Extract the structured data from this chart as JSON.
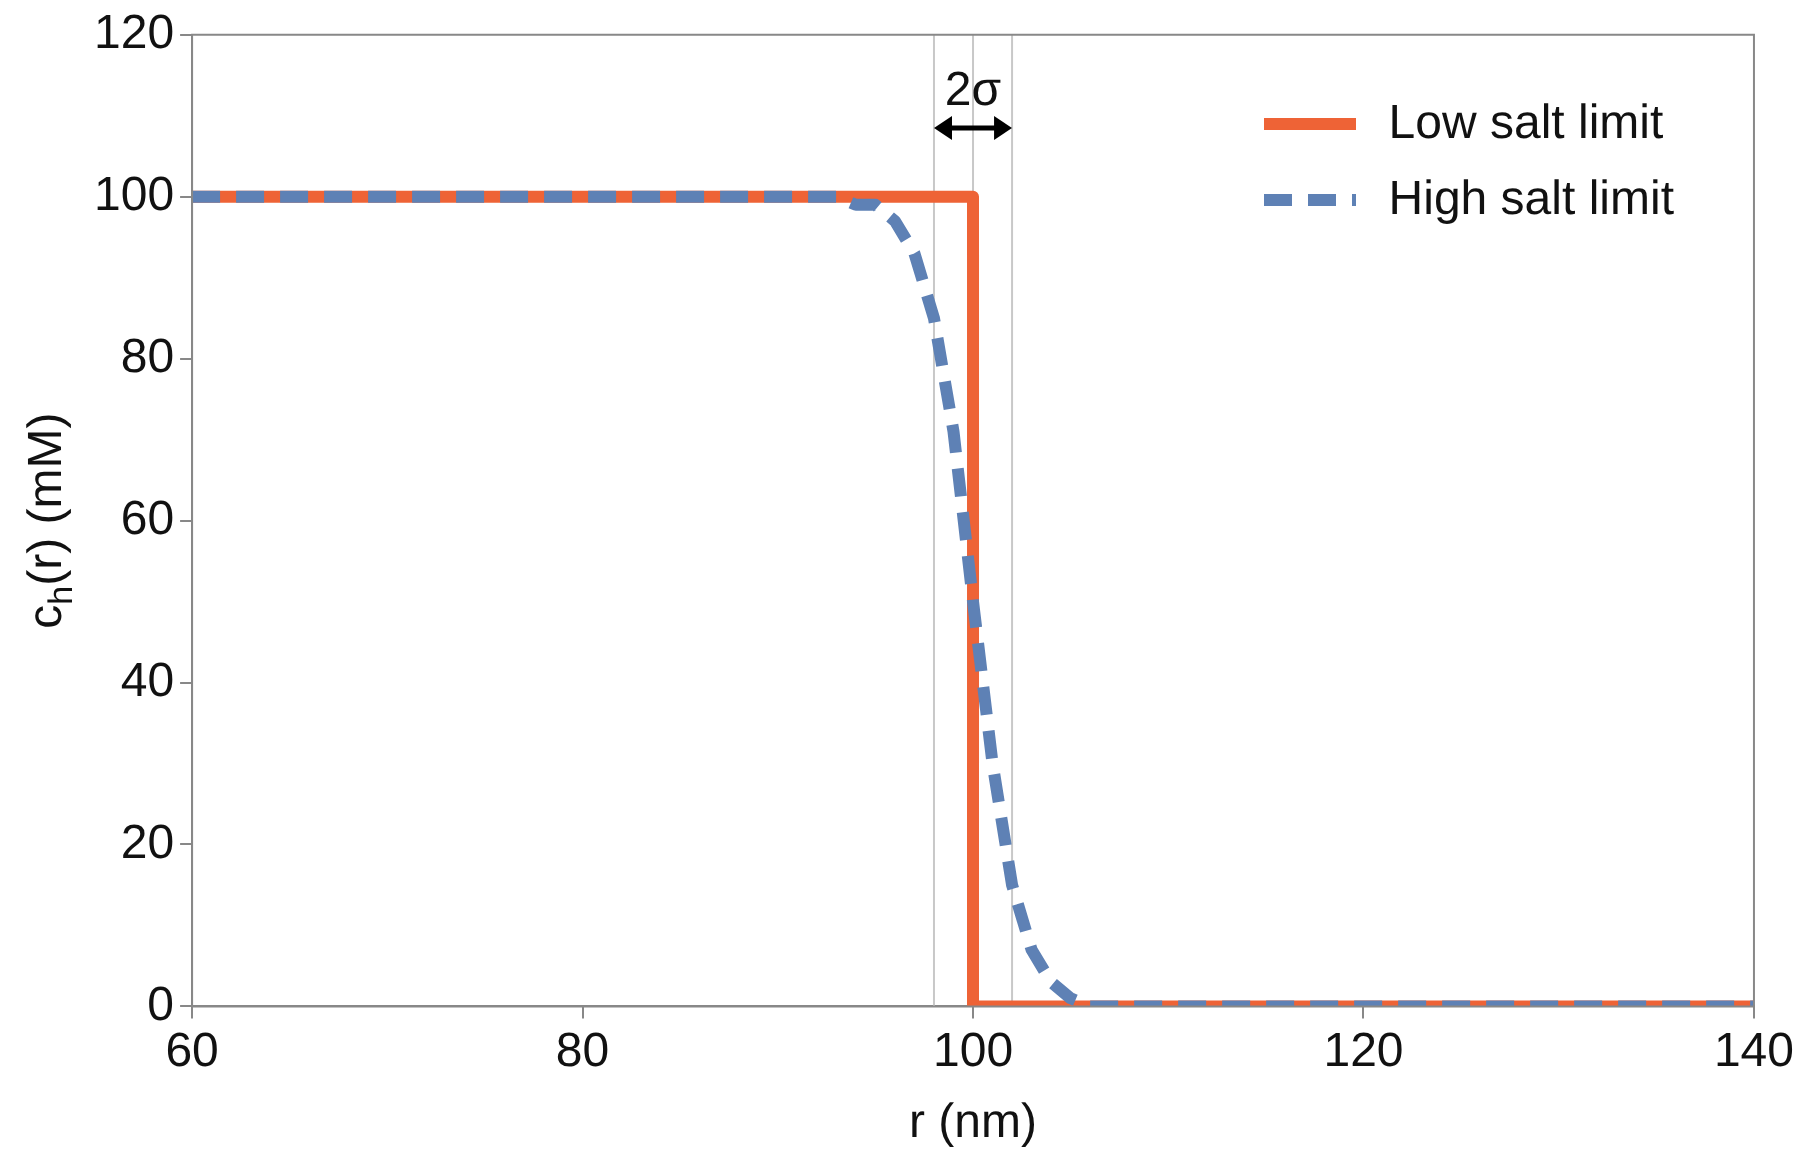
{
  "chart_data": {
    "type": "line",
    "xlabel": "r (nm)",
    "ylabel": "c$_{h}$(r) (mM)",
    "xlim": [
      60,
      140
    ],
    "xticks": [
      60,
      80,
      100,
      120,
      140
    ],
    "ylim": [
      0,
      120
    ],
    "yticks": [
      0,
      20,
      40,
      60,
      80,
      100,
      120
    ],
    "grid": false,
    "legend": "top right",
    "marker": "none",
    "series": [
      {
        "name": "Low salt limit",
        "color": "#ee6336",
        "line_style": "solid",
        "x": [
          60,
          100,
          100,
          140
        ],
        "values": [
          100,
          100,
          0,
          0
        ]
      },
      {
        "name": "High salt limit",
        "color": "#5e81b5",
        "line_style": "dashed",
        "x": [
          60,
          90,
          93,
          94,
          95,
          96,
          97,
          98,
          99,
          100,
          101,
          102,
          103,
          104,
          105,
          106,
          107,
          110,
          140
        ],
        "values": [
          100,
          100,
          100,
          99,
          99,
          97,
          93,
          85,
          71,
          50,
          30,
          15,
          7,
          3,
          1,
          0,
          0,
          0,
          0
        ]
      }
    ],
    "ref_lines": [
      {
        "axis": "x",
        "value": 98,
        "color": "#c8c8c8"
      },
      {
        "axis": "x",
        "value": 100,
        "color": "#c8c8c8"
      },
      {
        "axis": "x",
        "value": 102,
        "color": "#c8c8c8"
      }
    ],
    "annotations": [
      {
        "text": "2σ",
        "x": 100,
        "y": 113
      }
    ]
  }
}
